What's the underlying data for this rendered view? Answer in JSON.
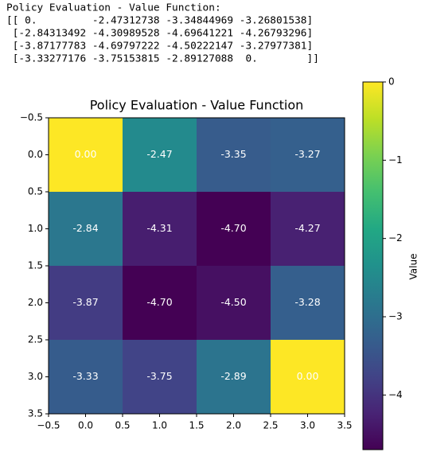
{
  "output_lines": [
    "Policy Evaluation - Value Function:",
    "[[ 0.         -2.47312738 -3.34844969 -3.26801538]",
    " [-2.84313492 -4.30989528 -4.69641221 -4.26793296]",
    " [-3.87177783 -4.69797222 -4.50222147 -3.27977381]",
    " [-3.33277176 -3.75153815 -2.89127088  0.        ]]"
  ],
  "chart_data": {
    "type": "heatmap",
    "title": "Policy Evaluation - Value Function",
    "values": [
      [
        0,
        -2.47312738,
        -3.34844969,
        -3.26801538
      ],
      [
        -2.84313492,
        -4.30989528,
        -4.69641221,
        -4.26793296
      ],
      [
        -3.87177783,
        -4.69797222,
        -4.50222147,
        -3.27977381
      ],
      [
        -3.33277176,
        -3.75153815,
        -2.89127088,
        0
      ]
    ],
    "value_labels": [
      [
        "0.00",
        "-2.47",
        "-3.35",
        "-3.27"
      ],
      [
        "-2.84",
        "-4.31",
        "-4.70",
        "-4.27"
      ],
      [
        "-3.87",
        "-4.70",
        "-4.50",
        "-3.28"
      ],
      [
        "-3.33",
        "-3.75",
        "-2.89",
        "0.00"
      ]
    ],
    "xlim": [
      -0.5,
      3.5
    ],
    "ylim": [
      3.5,
      -0.5
    ],
    "xticks": [
      {
        "value": -0.5,
        "label": "−0.5"
      },
      {
        "value": 0,
        "label": "0.0"
      },
      0.5,
      {
        "value": 1,
        "label": "1.0"
      },
      1.5,
      {
        "value": 2,
        "label": "2.0"
      },
      2.5,
      {
        "value": 3,
        "label": "3.0"
      },
      3.5
    ],
    "yticks": [
      {
        "value": -0.5,
        "label": "−0.5"
      },
      {
        "value": 0,
        "label": "0.0"
      },
      0.5,
      {
        "value": 1,
        "label": "1.0"
      },
      1.5,
      {
        "value": 2,
        "label": "2.0"
      },
      2.5,
      {
        "value": 3,
        "label": "3.0"
      },
      3.5
    ],
    "colormap": "viridis",
    "colorbar": {
      "label": "Value",
      "lim": [
        -4.69797222,
        0
      ],
      "ticks": [
        0,
        {
          "value": -1,
          "label": "−1"
        },
        {
          "value": -2,
          "label": "−2"
        },
        {
          "value": -3,
          "label": "−3"
        },
        {
          "value": -4,
          "label": "−4"
        }
      ]
    }
  }
}
